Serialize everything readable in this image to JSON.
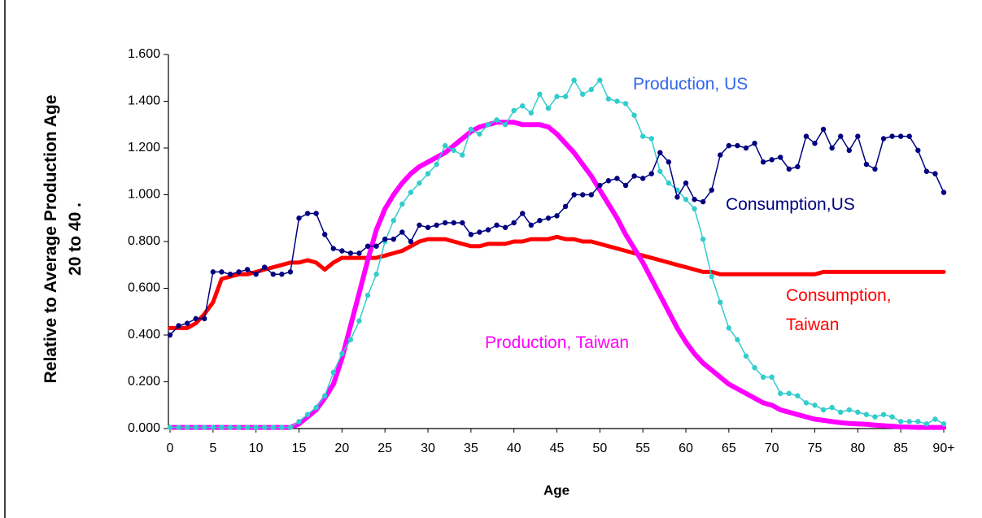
{
  "chart_data": {
    "type": "line",
    "x_label": "Age",
    "y_label": "Relative to Average Production Age 20 to 40   .",
    "x": [
      0,
      1,
      2,
      3,
      4,
      5,
      6,
      7,
      8,
      9,
      10,
      11,
      12,
      13,
      14,
      15,
      16,
      17,
      18,
      19,
      20,
      21,
      22,
      23,
      24,
      25,
      26,
      27,
      28,
      29,
      30,
      31,
      32,
      33,
      34,
      35,
      36,
      37,
      38,
      39,
      40,
      41,
      42,
      43,
      44,
      45,
      46,
      47,
      48,
      49,
      50,
      51,
      52,
      53,
      54,
      55,
      56,
      57,
      58,
      59,
      60,
      61,
      62,
      63,
      64,
      65,
      66,
      67,
      68,
      69,
      70,
      71,
      72,
      73,
      74,
      75,
      76,
      77,
      78,
      79,
      80,
      81,
      82,
      83,
      84,
      85,
      86,
      87,
      88,
      89,
      90
    ],
    "xlim": [
      0,
      90
    ],
    "xticks": [
      0,
      5,
      10,
      15,
      20,
      25,
      30,
      35,
      40,
      45,
      50,
      55,
      60,
      65,
      70,
      75,
      80,
      85,
      {
        "value": 90,
        "label": "90+"
      }
    ],
    "ylim": [
      0,
      1.6
    ],
    "yticks": [
      {
        "value": 0,
        "label": "0.000"
      },
      {
        "value": 0.2,
        "label": "0.200"
      },
      {
        "value": 0.4,
        "label": "0.400"
      },
      {
        "value": 0.6,
        "label": "0.600"
      },
      {
        "value": 0.8,
        "label": "0.800"
      },
      {
        "value": 1.0,
        "label": "1.000"
      },
      {
        "value": 1.2,
        "label": "1.200"
      },
      {
        "value": 1.4,
        "label": "1.400"
      },
      {
        "value": 1.6,
        "label": "1.600"
      }
    ],
    "grid": false,
    "series": [
      {
        "name": "Consumption, Taiwan",
        "color": "#ff0000",
        "label_color": "#ff0000",
        "line_width": 5,
        "markers": false,
        "values": [
          0.43,
          0.43,
          0.43,
          0.45,
          0.49,
          0.54,
          0.64,
          0.65,
          0.66,
          0.66,
          0.67,
          0.68,
          0.69,
          0.7,
          0.71,
          0.71,
          0.72,
          0.71,
          0.68,
          0.71,
          0.73,
          0.73,
          0.73,
          0.73,
          0.73,
          0.74,
          0.75,
          0.76,
          0.78,
          0.8,
          0.81,
          0.81,
          0.81,
          0.8,
          0.79,
          0.78,
          0.78,
          0.79,
          0.79,
          0.79,
          0.8,
          0.8,
          0.81,
          0.81,
          0.81,
          0.82,
          0.81,
          0.81,
          0.8,
          0.8,
          0.79,
          0.78,
          0.77,
          0.76,
          0.75,
          0.74,
          0.73,
          0.72,
          0.71,
          0.7,
          0.69,
          0.68,
          0.67,
          0.67,
          0.66,
          0.66,
          0.66,
          0.66,
          0.66,
          0.66,
          0.66,
          0.66,
          0.66,
          0.66,
          0.66,
          0.66,
          0.67,
          0.67,
          0.67,
          0.67,
          0.67,
          0.67,
          0.67,
          0.67,
          0.67,
          0.67,
          0.67,
          0.67,
          0.67,
          0.67,
          0.67
        ]
      },
      {
        "name": "Production, Taiwan",
        "color": "#ff00ff",
        "label_color": "#ff00ff",
        "line_width": 6,
        "markers": false,
        "values": [
          0.005,
          0.005,
          0.005,
          0.005,
          0.005,
          0.005,
          0.005,
          0.005,
          0.005,
          0.005,
          0.005,
          0.005,
          0.005,
          0.005,
          0.005,
          0.02,
          0.05,
          0.08,
          0.13,
          0.19,
          0.3,
          0.44,
          0.58,
          0.72,
          0.85,
          0.94,
          1.0,
          1.05,
          1.09,
          1.12,
          1.14,
          1.16,
          1.18,
          1.21,
          1.24,
          1.27,
          1.29,
          1.3,
          1.31,
          1.31,
          1.31,
          1.3,
          1.3,
          1.3,
          1.29,
          1.26,
          1.22,
          1.18,
          1.13,
          1.08,
          1.02,
          0.96,
          0.9,
          0.83,
          0.77,
          0.71,
          0.64,
          0.57,
          0.5,
          0.43,
          0.37,
          0.32,
          0.28,
          0.25,
          0.22,
          0.19,
          0.17,
          0.15,
          0.13,
          0.11,
          0.1,
          0.08,
          0.07,
          0.06,
          0.05,
          0.04,
          0.035,
          0.03,
          0.025,
          0.022,
          0.02,
          0.018,
          0.015,
          0.012,
          0.01,
          0.007,
          0.006,
          0.005,
          0.005,
          0.005,
          0.005
        ]
      },
      {
        "name": "Production, US",
        "color": "#33cccc",
        "label_color": "#3366ee",
        "line_width": 1.5,
        "markers": true,
        "values": [
          0.005,
          0.005,
          0.005,
          0.005,
          0.005,
          0.005,
          0.005,
          0.005,
          0.005,
          0.005,
          0.005,
          0.005,
          0.005,
          0.005,
          0.005,
          0.03,
          0.06,
          0.09,
          0.14,
          0.24,
          0.32,
          0.38,
          0.46,
          0.57,
          0.66,
          0.8,
          0.89,
          0.96,
          1.01,
          1.05,
          1.09,
          1.13,
          1.21,
          1.19,
          1.17,
          1.28,
          1.26,
          1.3,
          1.32,
          1.3,
          1.36,
          1.38,
          1.35,
          1.43,
          1.37,
          1.42,
          1.42,
          1.49,
          1.43,
          1.45,
          1.49,
          1.41,
          1.4,
          1.39,
          1.34,
          1.25,
          1.24,
          1.1,
          1.05,
          1.02,
          0.98,
          0.94,
          0.81,
          0.65,
          0.54,
          0.43,
          0.38,
          0.31,
          0.26,
          0.22,
          0.22,
          0.15,
          0.15,
          0.14,
          0.11,
          0.1,
          0.08,
          0.09,
          0.07,
          0.08,
          0.07,
          0.06,
          0.05,
          0.06,
          0.05,
          0.03,
          0.03,
          0.03,
          0.02,
          0.04,
          0.02
        ]
      },
      {
        "name": "Consumption,US",
        "color": "#000080",
        "label_color": "#000080",
        "line_width": 1.5,
        "markers": true,
        "values": [
          0.4,
          0.44,
          0.45,
          0.47,
          0.47,
          0.67,
          0.67,
          0.66,
          0.67,
          0.68,
          0.66,
          0.69,
          0.66,
          0.66,
          0.67,
          0.9,
          0.92,
          0.92,
          0.83,
          0.77,
          0.76,
          0.75,
          0.75,
          0.78,
          0.78,
          0.81,
          0.81,
          0.84,
          0.8,
          0.87,
          0.86,
          0.87,
          0.88,
          0.88,
          0.88,
          0.83,
          0.84,
          0.85,
          0.87,
          0.86,
          0.88,
          0.92,
          0.87,
          0.89,
          0.9,
          0.91,
          0.95,
          1.0,
          1.0,
          1.0,
          1.04,
          1.06,
          1.07,
          1.04,
          1.08,
          1.07,
          1.09,
          1.18,
          1.14,
          0.99,
          1.05,
          0.98,
          0.97,
          1.02,
          1.17,
          1.21,
          1.21,
          1.2,
          1.22,
          1.14,
          1.15,
          1.16,
          1.11,
          1.12,
          1.25,
          1.22,
          1.28,
          1.2,
          1.25,
          1.19,
          1.25,
          1.13,
          1.11,
          1.24,
          1.25,
          1.25,
          1.25,
          1.19,
          1.1,
          1.09,
          1.01
        ]
      }
    ]
  }
}
